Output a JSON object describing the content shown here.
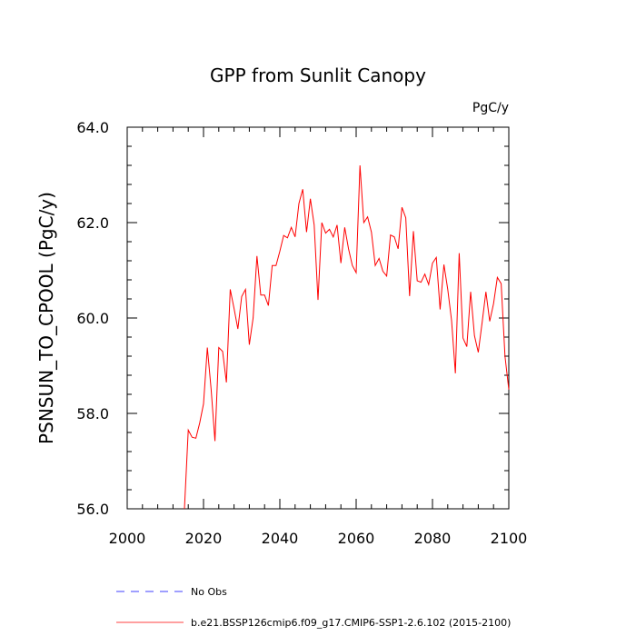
{
  "chart_data": {
    "type": "line",
    "title": "GPP from Sunlit Canopy",
    "units": "PgC/y",
    "ylabel": "PSNSUN_TO_CPOOL  (PgC/y)",
    "xlabel": "",
    "xlim": [
      2000,
      2100
    ],
    "ylim": [
      56.0,
      64.0
    ],
    "x_major_ticks": [
      2000,
      2020,
      2040,
      2060,
      2080,
      2100
    ],
    "x_tick_labels": [
      "2000",
      "2020",
      "2040",
      "2060",
      "2080",
      "2100"
    ],
    "y_major_ticks": [
      56.0,
      58.0,
      60.0,
      62.0,
      64.0
    ],
    "y_tick_labels": [
      "56.0",
      "58.0",
      "60.0",
      "62.0",
      "64.0"
    ],
    "x_minor_step": 4,
    "y_minor_step": 0.4,
    "grid": false,
    "series": [
      {
        "name": "b.e21.BSSP126cmip6.f09_g17.CMIP6-SSP1-2.6.102 (2015-2100)",
        "color": "#ff0000",
        "style": "solid",
        "x": [
          2015,
          2016,
          2017,
          2018,
          2019,
          2020,
          2021,
          2022,
          2023,
          2024,
          2025,
          2026,
          2027,
          2028,
          2029,
          2030,
          2031,
          2032,
          2033,
          2034,
          2035,
          2036,
          2037,
          2038,
          2039,
          2040,
          2041,
          2042,
          2043,
          2044,
          2045,
          2046,
          2047,
          2048,
          2049,
          2050,
          2051,
          2052,
          2053,
          2054,
          2055,
          2056,
          2057,
          2058,
          2059,
          2060,
          2061,
          2062,
          2063,
          2064,
          2065,
          2066,
          2067,
          2068,
          2069,
          2070,
          2071,
          2072,
          2073,
          2074,
          2075,
          2076,
          2077,
          2078,
          2079,
          2080,
          2081,
          2082,
          2083,
          2084,
          2085,
          2086,
          2087,
          2088,
          2089,
          2090,
          2091,
          2092,
          2093,
          2094,
          2095,
          2096,
          2097,
          2098,
          2099,
          2100
        ],
        "values": [
          56.0,
          57.65,
          57.5,
          57.48,
          57.8,
          58.2,
          59.38,
          58.5,
          57.42,
          59.38,
          59.3,
          58.65,
          60.6,
          60.2,
          59.77,
          60.45,
          60.6,
          59.44,
          60.0,
          61.3,
          60.48,
          60.48,
          60.26,
          61.1,
          61.1,
          61.4,
          61.73,
          61.68,
          61.9,
          61.7,
          62.4,
          62.7,
          61.8,
          62.5,
          61.95,
          60.38,
          62.0,
          61.78,
          61.86,
          61.7,
          61.95,
          61.15,
          61.9,
          61.45,
          61.1,
          60.95,
          63.2,
          62.0,
          62.12,
          61.8,
          61.1,
          61.25,
          60.98,
          60.88,
          61.74,
          61.7,
          61.45,
          62.32,
          62.1,
          60.46,
          61.82,
          60.78,
          60.75,
          60.92,
          60.7,
          61.15,
          61.27,
          60.18,
          61.12,
          60.6,
          59.95,
          58.84,
          61.36,
          59.58,
          59.4,
          60.55,
          59.63,
          59.28,
          59.9,
          60.55,
          59.93,
          60.3,
          60.85,
          60.72,
          59.2,
          58.5
        ]
      },
      {
        "name": "No Obs",
        "color": "#0000ff",
        "style": "dashed",
        "x": [],
        "values": []
      }
    ]
  }
}
